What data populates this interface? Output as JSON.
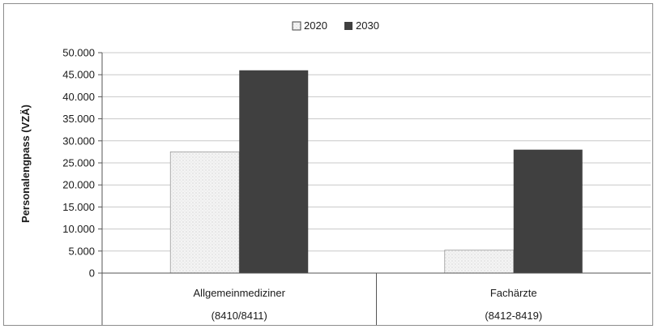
{
  "chart_data": {
    "type": "bar",
    "categories": [
      {
        "line1": "Allgemeinmediziner",
        "line2": "(8410/8411)"
      },
      {
        "line1": "Fachärzte",
        "line2": "(8412-8419)"
      }
    ],
    "series": [
      {
        "name": "2020",
        "values": [
          27500,
          5200
        ],
        "color": "#f2f2f2",
        "pattern": "dotted"
      },
      {
        "name": "2030",
        "values": [
          46000,
          28000
        ],
        "color": "#404040",
        "pattern": "solid"
      }
    ],
    "ylabel": "Personalengpass (VZÄ)",
    "ylim": [
      0,
      50000
    ],
    "yticks": [
      0,
      5000,
      10000,
      15000,
      20000,
      25000,
      30000,
      35000,
      40000,
      45000,
      50000
    ],
    "ytick_labels": [
      "0",
      "5.000",
      "10.000",
      "15.000",
      "20.000",
      "25.000",
      "30.000",
      "35.000",
      "40.000",
      "45.000",
      "50.000"
    ],
    "grid": true,
    "legend_position": "top-center"
  }
}
